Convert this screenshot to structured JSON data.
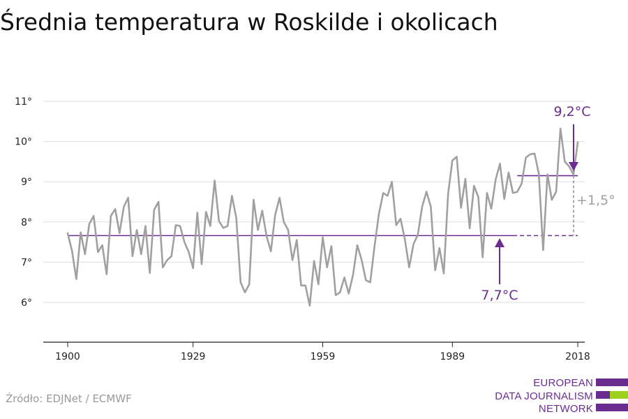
{
  "page": {
    "title": "Średnia temperatura w Roskilde i okolicach",
    "source": "Źródło: EDJNet / ECMWF"
  },
  "logo": {
    "lines": [
      "EUROPEAN",
      "DATA JOURNALISM",
      "NETWORK"
    ],
    "purple": "#6a2d8f",
    "green": "#9ed11e"
  },
  "chart_data": {
    "type": "line",
    "title": "Średnia temperatura w Roskilde i okolicach",
    "xlabel": "",
    "ylabel": "",
    "xlim": [
      1900,
      2018
    ],
    "ylim": [
      5,
      11
    ],
    "x_ticks": [
      1900,
      1929,
      1959,
      1989,
      2018
    ],
    "y_ticks": [
      6,
      7,
      8,
      9,
      10,
      11
    ],
    "y_tick_suffix": "°",
    "grid": true,
    "series": [
      {
        "color": "#a0a0a0",
        "x_start": 1900,
        "values": [
          7.72,
          7.28,
          6.58,
          7.74,
          7.2,
          7.95,
          8.15,
          7.25,
          7.42,
          6.7,
          8.15,
          8.32,
          7.72,
          8.38,
          8.6,
          7.15,
          7.8,
          7.2,
          7.9,
          6.73,
          8.3,
          8.5,
          6.87,
          7.05,
          7.15,
          7.92,
          7.9,
          7.5,
          7.25,
          6.85,
          8.23,
          6.95,
          8.25,
          7.9,
          9.03,
          8.02,
          7.85,
          7.9,
          8.65,
          8.1,
          6.5,
          6.25,
          6.45,
          8.55,
          7.8,
          8.28,
          7.65,
          7.27,
          8.18,
          8.6,
          8.0,
          7.8,
          7.05,
          7.55,
          6.42,
          6.42,
          5.92,
          7.03,
          6.45,
          7.62,
          6.87,
          7.4,
          6.18,
          6.25,
          6.62,
          6.22,
          6.68,
          7.42,
          7.05,
          6.55,
          6.5,
          7.4,
          8.2,
          8.72,
          8.65,
          9.0,
          7.92,
          8.08,
          7.57,
          6.87,
          7.45,
          7.68,
          8.38,
          8.75,
          8.38,
          6.8,
          7.35,
          6.72,
          8.7,
          9.53,
          9.62,
          8.35,
          9.07,
          7.84,
          8.9,
          8.62,
          7.12,
          8.72,
          8.33,
          9.05,
          9.45,
          8.57,
          9.23,
          8.72,
          8.75,
          8.95,
          9.6,
          9.68,
          9.7,
          9.2,
          7.3,
          9.18,
          8.55,
          8.75,
          10.32,
          9.5,
          9.38,
          9.18,
          9.98
        ]
      }
    ],
    "reference_lines": [
      {
        "label": "7,7°C",
        "value": 7.66,
        "color": "#6a2d8f",
        "x_from": 1900,
        "x_to": 2003,
        "dashed_to": 2018
      },
      {
        "label": "9,2°C",
        "value": 9.15,
        "color": "#6a2d8f",
        "x_from": 2004,
        "x_to": 2018
      }
    ],
    "difference_label": "+1,5°",
    "difference_color": "#a0a0a0"
  }
}
